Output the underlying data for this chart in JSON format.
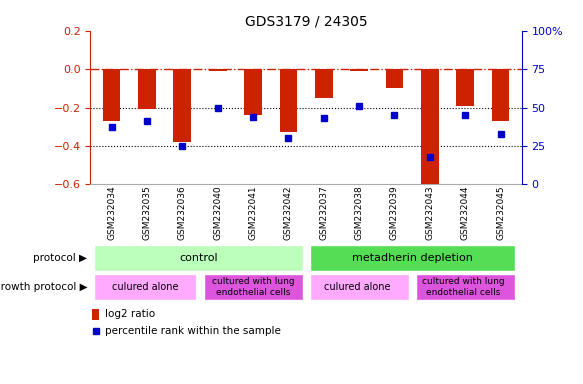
{
  "title": "GDS3179 / 24305",
  "categories": [
    "GSM232034",
    "GSM232035",
    "GSM232036",
    "GSM232040",
    "GSM232041",
    "GSM232042",
    "GSM232037",
    "GSM232038",
    "GSM232039",
    "GSM232043",
    "GSM232044",
    "GSM232045"
  ],
  "log2_ratio": [
    -0.27,
    -0.21,
    -0.38,
    -0.01,
    -0.24,
    -0.33,
    -0.15,
    -0.01,
    -0.1,
    -0.6,
    -0.19,
    -0.27
  ],
  "percentile_rank": [
    37,
    41,
    25,
    50,
    44,
    30,
    43,
    51,
    45,
    18,
    45,
    33
  ],
  "bar_color": "#cc2200",
  "dot_color": "#0000cc",
  "dashed_line_color": "#cc2200",
  "ylim_left": [
    -0.6,
    0.2
  ],
  "ylim_right": [
    0,
    100
  ],
  "y_ticks_left": [
    -0.6,
    -0.4,
    -0.2,
    0.0,
    0.2
  ],
  "y_ticks_right": [
    0,
    25,
    50,
    75,
    100
  ],
  "grid_dotted_vals": [
    -0.2,
    -0.4
  ],
  "protocol_label_control": "control",
  "protocol_label_depletion": "metadherin depletion",
  "growth_labels": [
    "culured alone",
    "cultured with lung\nendothelial cells",
    "culured alone",
    "cultured with lung\nendothelial cells"
  ],
  "color_protocol_control": "#bbffbb",
  "color_protocol_depletion": "#55dd55",
  "color_growth_alone": "#ffaaff",
  "color_growth_lung": "#dd55dd",
  "color_xtick_bg": "#cccccc",
  "bar_width": 0.5,
  "legend_bar_label": "log2 ratio",
  "legend_dot_label": "percentile rank within the sample",
  "left_label": "protocol",
  "growth_label": "growth protocol"
}
